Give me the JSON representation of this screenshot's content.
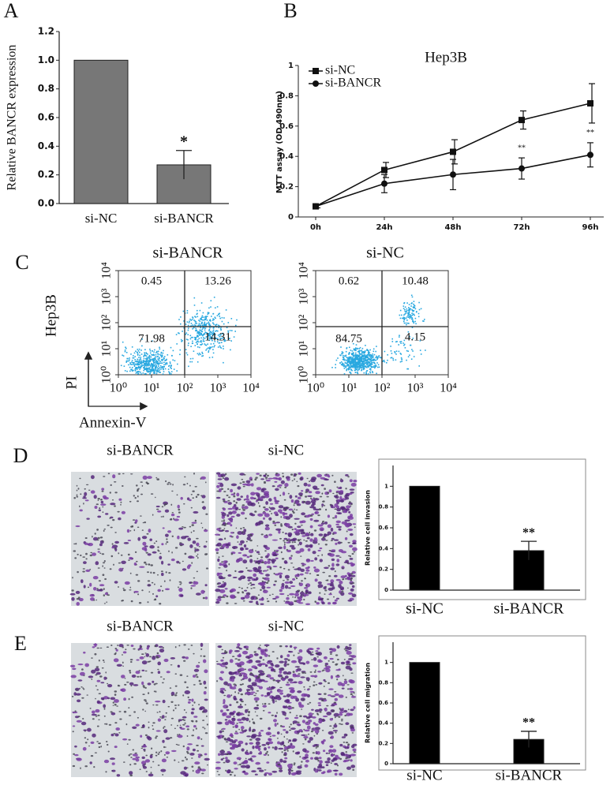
{
  "chart_data": [
    {
      "type": "bar",
      "panel_label": "A",
      "y_label": "Relative BANCR expression",
      "categories": [
        "si-NC",
        "si-BANCR"
      ],
      "values": [
        1.0,
        0.27
      ],
      "errors": [
        null,
        0.1
      ],
      "significance": [
        null,
        "*"
      ],
      "color": "#777777",
      "ylim": [
        0,
        1.2
      ],
      "yticks": [
        {
          "value": 0,
          "label": "0.0"
        },
        {
          "value": 0.2,
          "label": "0.2"
        },
        {
          "value": 0.4,
          "label": "0.4"
        },
        {
          "value": 0.6,
          "label": "0.6"
        },
        {
          "value": 0.8,
          "label": "0.8"
        },
        {
          "value": 1,
          "label": "1.0"
        },
        {
          "value": 1.2,
          "label": "1.2"
        }
      ]
    },
    {
      "type": "line",
      "panel_label": "B",
      "title": "Hep3B",
      "y_label": "MTT assay (OD 490nm)",
      "categories": [
        "0h",
        "24h",
        "48h",
        "72h",
        "96h"
      ],
      "series": [
        {
          "name": "si-NC",
          "color": "#111111",
          "marker": "square",
          "values": [
            0.07,
            0.31,
            0.43,
            0.64,
            0.75
          ],
          "errors": [
            0.01,
            0.05,
            0.08,
            0.06,
            0.13
          ]
        },
        {
          "name": "si-BANCR",
          "color": "#111111",
          "marker": "circle",
          "values": [
            0.07,
            0.22,
            0.28,
            0.32,
            0.41
          ],
          "errors": [
            0.01,
            0.06,
            0.1,
            0.07,
            0.08
          ]
        }
      ],
      "significance": [
        null,
        null,
        null,
        "**",
        "**"
      ],
      "ylim": [
        0,
        1
      ],
      "yticks": [
        0,
        0.2,
        0.4,
        0.6,
        0.8,
        1
      ]
    },
    {
      "type": "flow-cytometry",
      "panel_label": "C",
      "row_label": "Hep3B",
      "x_label": "Annexin-V",
      "y_label": "PI",
      "log_scale": true,
      "color": "#29a8e0",
      "xlim": [
        1,
        10000
      ],
      "ylim": [
        1,
        10000
      ],
      "xticks": [
        {
          "value": 1,
          "label": "10⁰"
        },
        {
          "value": 10,
          "label": "10¹"
        },
        {
          "value": 100,
          "label": "10²"
        },
        {
          "value": 1000,
          "label": "10³"
        },
        {
          "value": 10000,
          "label": "10⁴"
        }
      ],
      "yticks": [
        {
          "value": 1,
          "label": "10⁰"
        },
        {
          "value": 10,
          "label": "10¹"
        },
        {
          "value": 100,
          "label": "10²"
        },
        {
          "value": 1000,
          "label": "10³"
        },
        {
          "value": 10000,
          "label": "10⁴"
        }
      ],
      "plots": [
        {
          "title": "si-BANCR",
          "quadrants": [
            0.45,
            13.26,
            71.98,
            14.31
          ]
        },
        {
          "title": "si-NC",
          "quadrants": [
            0.62,
            10.48,
            84.75,
            4.15
          ]
        }
      ]
    },
    {
      "type": "bar",
      "panel_label": "D",
      "image_titles": [
        "si-BANCR",
        "si-NC"
      ],
      "y_label": "Relative cell invasion",
      "categories": [
        "si-NC",
        "si-BANCR"
      ],
      "values": [
        1,
        0.38
      ],
      "errors": [
        null,
        0.09
      ],
      "significance": [
        null,
        "**"
      ],
      "color": "#000000",
      "ylim": [
        0,
        1.2
      ],
      "yticks": [
        0,
        0.2,
        0.4,
        0.6,
        0.8,
        1
      ]
    },
    {
      "type": "bar",
      "panel_label": "E",
      "image_titles": [
        "si-BANCR",
        "si-NC"
      ],
      "y_label": "Relative cell migration",
      "categories": [
        "si-NC",
        "si-BANCR"
      ],
      "values": [
        1,
        0.24
      ],
      "errors": [
        null,
        0.08
      ],
      "significance": [
        null,
        "**"
      ],
      "color": "#000000",
      "ylim": [
        0,
        1.2
      ],
      "yticks": [
        0,
        0.2,
        0.4,
        0.6,
        0.8,
        1
      ]
    }
  ]
}
